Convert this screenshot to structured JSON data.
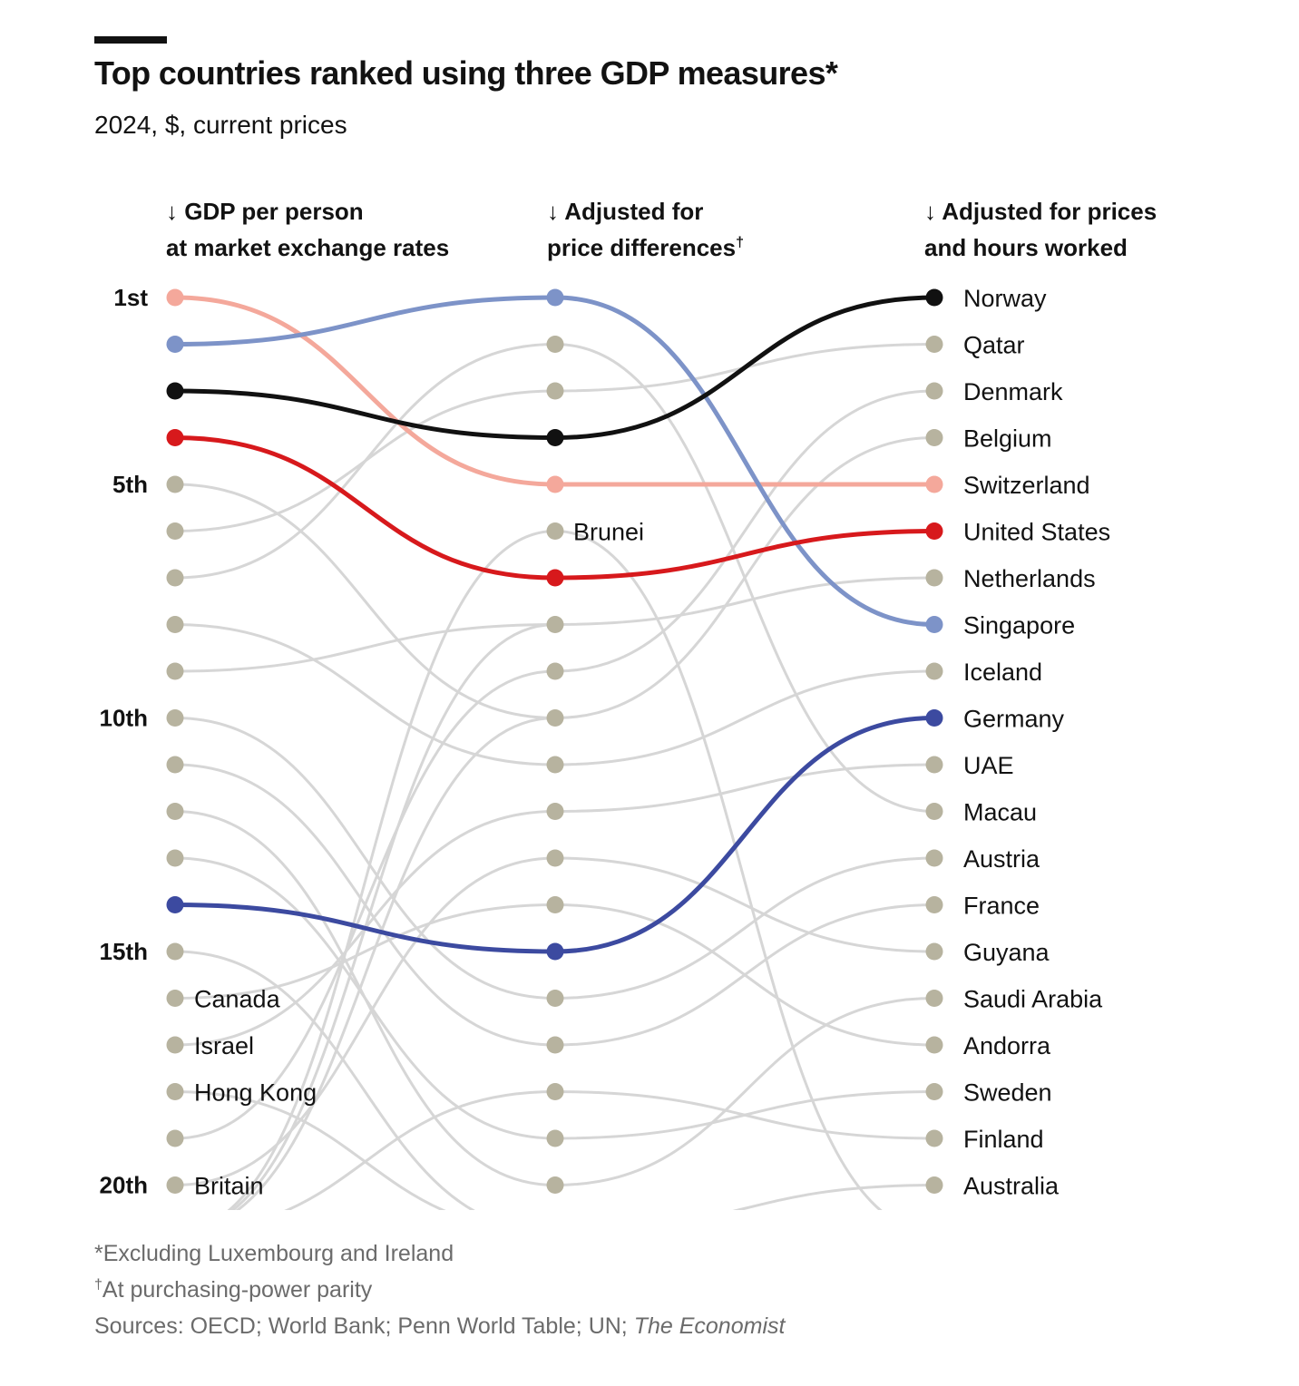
{
  "header": {
    "title": "Top countries ranked using three GDP measures*",
    "subtitle": "2024, $, current prices"
  },
  "footer": {
    "note1": "*Excluding Luxembourg and Ireland",
    "note2_mark": "†",
    "note2": "At purchasing-power parity",
    "sources_prefix": "Sources: OECD; World Bank; Penn World Table; UN; ",
    "sources_em": "The Economist"
  },
  "chart_data": {
    "type": "slope",
    "title": "Top countries ranked using three GDP measures*",
    "subtitle": "2024, $, current prices",
    "columns": [
      {
        "arrow": "↓",
        "lines": [
          "GDP per person",
          "at market exchange rates"
        ],
        "mark": ""
      },
      {
        "arrow": "↓",
        "lines": [
          "Adjusted for",
          "price differences"
        ],
        "mark": "†"
      },
      {
        "arrow": "↓",
        "lines": [
          "Adjusted for prices",
          "and hours worked"
        ],
        "mark": ""
      }
    ],
    "rank_labels": [
      {
        "rank": 1,
        "label": "1st"
      },
      {
        "rank": 5,
        "label": "5th"
      },
      {
        "rank": 10,
        "label": "10th"
      },
      {
        "rank": 15,
        "label": "15th"
      },
      {
        "rank": 20,
        "label": "20th"
      }
    ],
    "colors": {
      "Norway": "#111111",
      "Switzerland": "#F4A89B",
      "United States": "#D7191C",
      "Singapore": "#7D93C8",
      "Germany": "#3C4AA0",
      "other_dot": "#B7B39F",
      "other_line": "#D6D6D6"
    },
    "highlighted": [
      {
        "name": "Switzerland",
        "ranks": [
          1,
          5,
          5
        ]
      },
      {
        "name": "Singapore",
        "ranks": [
          2,
          1,
          8
        ]
      },
      {
        "name": "Norway",
        "ranks": [
          3,
          4,
          1
        ]
      },
      {
        "name": "United States",
        "ranks": [
          4,
          7,
          6
        ]
      },
      {
        "name": "Germany",
        "ranks": [
          14,
          15,
          10
        ]
      }
    ],
    "column_labels": {
      "col1": [
        {
          "rank": 16,
          "name": "Canada"
        },
        {
          "rank": 17,
          "name": "Israel"
        },
        {
          "rank": 18,
          "name": "Hong Kong"
        },
        {
          "rank": 20,
          "name": "Britain"
        }
      ],
      "col2": [
        {
          "rank": 6,
          "name": "Brunei"
        }
      ],
      "col3": [
        {
          "rank": 1,
          "name": "Norway"
        },
        {
          "rank": 2,
          "name": "Qatar"
        },
        {
          "rank": 3,
          "name": "Denmark"
        },
        {
          "rank": 4,
          "name": "Belgium"
        },
        {
          "rank": 5,
          "name": "Switzerland"
        },
        {
          "rank": 6,
          "name": "United States"
        },
        {
          "rank": 7,
          "name": "Netherlands"
        },
        {
          "rank": 8,
          "name": "Singapore"
        },
        {
          "rank": 9,
          "name": "Iceland"
        },
        {
          "rank": 10,
          "name": "Germany"
        },
        {
          "rank": 11,
          "name": "UAE"
        },
        {
          "rank": 12,
          "name": "Macau"
        },
        {
          "rank": 13,
          "name": "Austria"
        },
        {
          "rank": 14,
          "name": "France"
        },
        {
          "rank": 15,
          "name": "Guyana"
        },
        {
          "rank": 16,
          "name": "Saudi Arabia"
        },
        {
          "rank": 17,
          "name": "Andorra"
        },
        {
          "rank": 18,
          "name": "Sweden"
        },
        {
          "rank": 19,
          "name": "Finland"
        },
        {
          "rank": 20,
          "name": "Australia"
        }
      ]
    },
    "grey_connections_1_2": [
      [
        5,
        10
      ],
      [
        6,
        3
      ],
      [
        7,
        2
      ],
      [
        8,
        11
      ],
      [
        9,
        8
      ],
      [
        10,
        16
      ],
      [
        11,
        17
      ],
      [
        12,
        20
      ],
      [
        13,
        19
      ],
      [
        16,
        14
      ],
      [
        17,
        12
      ],
      [
        19,
        9
      ],
      [
        20,
        13
      ],
      [
        15,
        21
      ],
      [
        18,
        21
      ],
      [
        21,
        6
      ],
      [
        21,
        18
      ],
      [
        21,
        8
      ],
      [
        21,
        10
      ]
    ],
    "grey_connections_2_3": [
      [
        2,
        12
      ],
      [
        3,
        2
      ],
      [
        6,
        21
      ],
      [
        8,
        7
      ],
      [
        9,
        3
      ],
      [
        10,
        4
      ],
      [
        11,
        9
      ],
      [
        12,
        11
      ],
      [
        13,
        15
      ],
      [
        14,
        17
      ],
      [
        16,
        13
      ],
      [
        17,
        14
      ],
      [
        18,
        19
      ],
      [
        19,
        18
      ],
      [
        20,
        16
      ],
      [
        21,
        20
      ],
      [
        21,
        21
      ],
      [
        21,
        22
      ]
    ]
  }
}
